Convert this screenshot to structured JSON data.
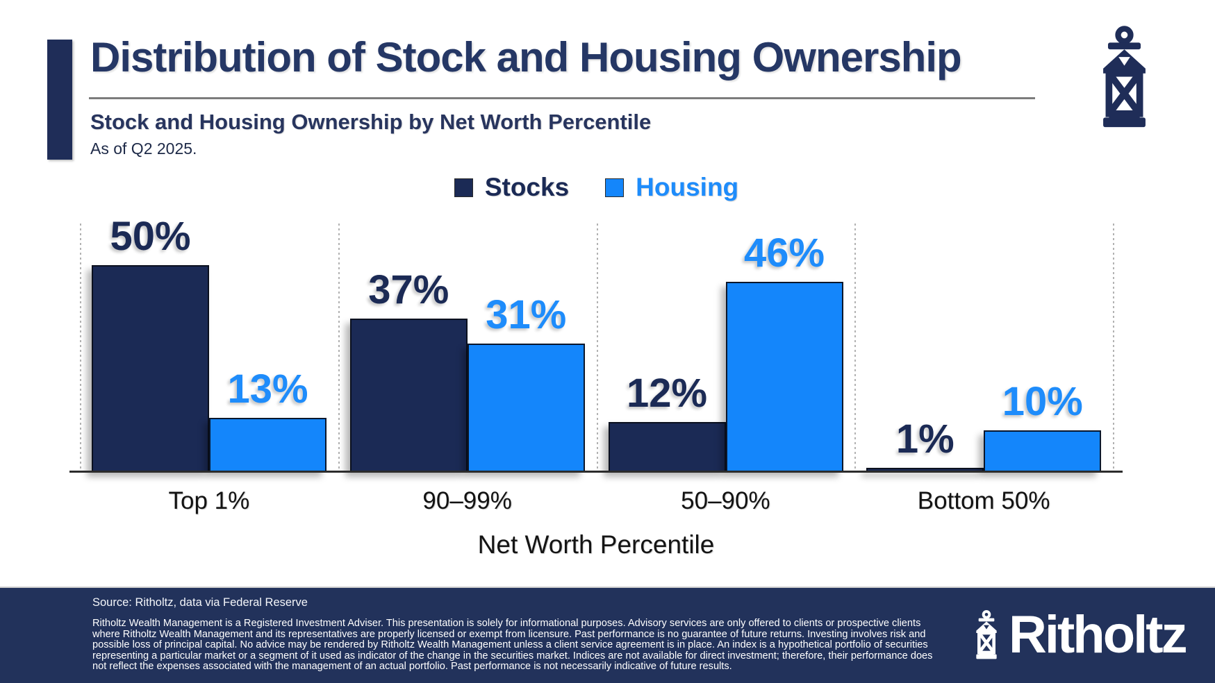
{
  "header": {
    "title": "Distribution of Stock and Housing Ownership",
    "subtitle": "Stock and Housing Ownership by Net Worth Percentile",
    "as_of": "As of Q2 2025."
  },
  "legend": [
    {
      "label": "Stocks",
      "color": "#1b2a55",
      "text_color": "#1b2a55"
    },
    {
      "label": "Housing",
      "color": "#1486fb",
      "text_color": "#1e8cfb"
    }
  ],
  "chart_data": {
    "type": "bar",
    "title": "Stock and Housing Ownership by Net Worth Percentile",
    "subtitle": "As of Q2 2025.",
    "categories": [
      "Top 1%",
      "90–99%",
      "50–90%",
      "Bottom 50%"
    ],
    "series": [
      {
        "name": "Stocks",
        "color": "#1b2a55",
        "label_color": "#1b2a55",
        "values": [
          50,
          37,
          12,
          1
        ]
      },
      {
        "name": "Housing",
        "color": "#1486fb",
        "label_color": "#1e8cfb",
        "values": [
          13,
          31,
          46,
          10
        ]
      }
    ],
    "value_suffix": "%",
    "xlabel": "Net Worth Percentile",
    "ylabel": "",
    "ylim": [
      0,
      60
    ],
    "grid": "vertical dashed separators between category groups",
    "legend_position": "top-center",
    "bar_labels": "shown above each bar"
  },
  "footer": {
    "source": "Source: Ritholtz, data via Federal Reserve",
    "disclaimer": "Ritholtz Wealth Management is a Registered Investment Adviser. This presentation is solely for informational purposes. Advisory services are only offered to clients or prospective clients where Ritholtz Wealth Management and its representatives are properly licensed or exempt from licensure. Past performance is no guarantee of future returns. Investing involves risk and possible loss of principal capital. No advice may be rendered by Ritholtz Wealth Management unless a client service agreement is in place. An index is a hypothetical portfolio of securities representing a particular market or a segment of it used as indicator of the change in the securities market. Indices are not available for direct investment; therefore, their performance does not reflect the expenses associated with the management of an actual portfolio. Past performance is not necessarily indicative of future results.",
    "brand": "Ritholtz"
  },
  "colors": {
    "stocks_navy": "#1b2a55",
    "housing_blue": "#1486fb",
    "title_navy": "#253765",
    "footer_navy": "#22325b",
    "gridline_gray": "#b2b2b2",
    "axis_dark": "#2c2c2c"
  },
  "icons": {
    "header_logo": "lantern-icon",
    "footer_logo": "lantern-icon"
  }
}
